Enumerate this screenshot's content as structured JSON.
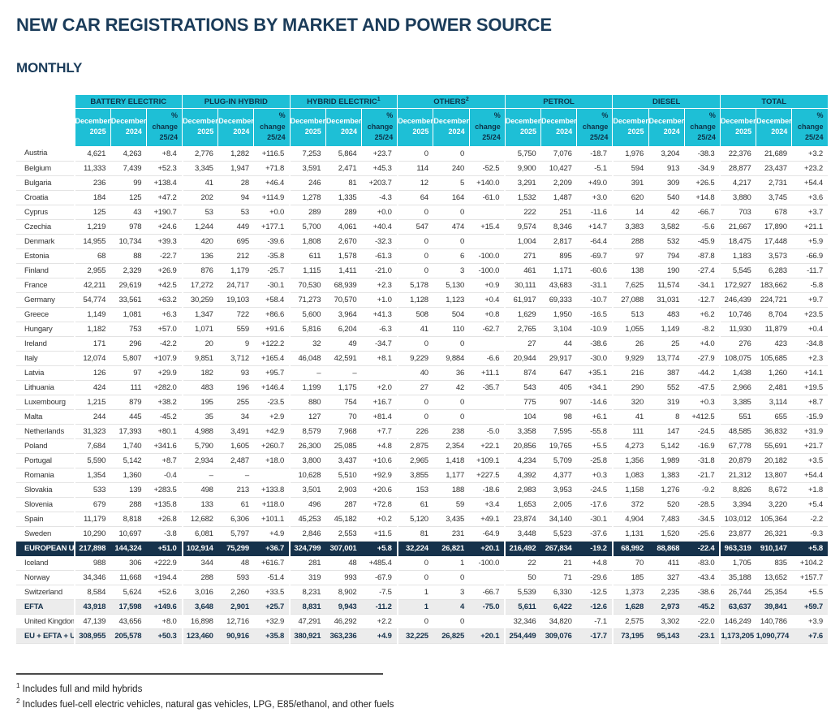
{
  "title": "NEW CAR REGISTRATIONS BY MARKET AND POWER SOURCE",
  "subtitle": "MONTHLY",
  "colors": {
    "header_cyan": "#1ebfd6",
    "navy": "#16324b",
    "title_navy": "#1b3c5a",
    "subtotal_gray": "#ececec"
  },
  "table": {
    "groups": [
      {
        "label": "BATTERY ELECTRIC",
        "sup": ""
      },
      {
        "label": "PLUG-IN HYBRID",
        "sup": ""
      },
      {
        "label": "HYBRID ELECTRIC",
        "sup": "1"
      },
      {
        "label": "OTHERS",
        "sup": "2"
      },
      {
        "label": "PETROL",
        "sup": ""
      },
      {
        "label": "DIESEL",
        "sup": ""
      },
      {
        "label": "TOTAL",
        "sup": ""
      }
    ],
    "subcols": [
      {
        "line1": "December",
        "line2": "2025"
      },
      {
        "line1": "December",
        "line2": "2024"
      },
      {
        "line1": "% change",
        "line2": "25/24"
      }
    ],
    "rows": [
      {
        "name": "Austria",
        "style": "normal",
        "cells": [
          "4,621",
          "4,263",
          "+8.4",
          "2,776",
          "1,282",
          "+116.5",
          "7,253",
          "5,864",
          "+23.7",
          "0",
          "0",
          "",
          "5,750",
          "7,076",
          "-18.7",
          "1,976",
          "3,204",
          "-38.3",
          "22,376",
          "21,689",
          "+3.2"
        ]
      },
      {
        "name": "Belgium",
        "style": "normal",
        "cells": [
          "11,333",
          "7,439",
          "+52.3",
          "3,345",
          "1,947",
          "+71.8",
          "3,591",
          "2,471",
          "+45.3",
          "114",
          "240",
          "-52.5",
          "9,900",
          "10,427",
          "-5.1",
          "594",
          "913",
          "-34.9",
          "28,877",
          "23,437",
          "+23.2"
        ]
      },
      {
        "name": "Bulgaria",
        "style": "normal",
        "cells": [
          "236",
          "99",
          "+138.4",
          "41",
          "28",
          "+46.4",
          "246",
          "81",
          "+203.7",
          "12",
          "5",
          "+140.0",
          "3,291",
          "2,209",
          "+49.0",
          "391",
          "309",
          "+26.5",
          "4,217",
          "2,731",
          "+54.4"
        ]
      },
      {
        "name": "Croatia",
        "style": "normal",
        "cells": [
          "184",
          "125",
          "+47.2",
          "202",
          "94",
          "+114.9",
          "1,278",
          "1,335",
          "-4.3",
          "64",
          "164",
          "-61.0",
          "1,532",
          "1,487",
          "+3.0",
          "620",
          "540",
          "+14.8",
          "3,880",
          "3,745",
          "+3.6"
        ]
      },
      {
        "name": "Cyprus",
        "style": "normal",
        "cells": [
          "125",
          "43",
          "+190.7",
          "53",
          "53",
          "+0.0",
          "289",
          "289",
          "+0.0",
          "0",
          "0",
          "",
          "222",
          "251",
          "-11.6",
          "14",
          "42",
          "-66.7",
          "703",
          "678",
          "+3.7"
        ]
      },
      {
        "name": "Czechia",
        "style": "normal",
        "cells": [
          "1,219",
          "978",
          "+24.6",
          "1,244",
          "449",
          "+177.1",
          "5,700",
          "4,061",
          "+40.4",
          "547",
          "474",
          "+15.4",
          "9,574",
          "8,346",
          "+14.7",
          "3,383",
          "3,582",
          "-5.6",
          "21,667",
          "17,890",
          "+21.1"
        ]
      },
      {
        "name": "Denmark",
        "style": "normal",
        "cells": [
          "14,955",
          "10,734",
          "+39.3",
          "420",
          "695",
          "-39.6",
          "1,808",
          "2,670",
          "-32.3",
          "0",
          "0",
          "",
          "1,004",
          "2,817",
          "-64.4",
          "288",
          "532",
          "-45.9",
          "18,475",
          "17,448",
          "+5.9"
        ]
      },
      {
        "name": "Estonia",
        "style": "normal",
        "cells": [
          "68",
          "88",
          "-22.7",
          "136",
          "212",
          "-35.8",
          "611",
          "1,578",
          "-61.3",
          "0",
          "6",
          "-100.0",
          "271",
          "895",
          "-69.7",
          "97",
          "794",
          "-87.8",
          "1,183",
          "3,573",
          "-66.9"
        ]
      },
      {
        "name": "Finland",
        "style": "normal",
        "cells": [
          "2,955",
          "2,329",
          "+26.9",
          "876",
          "1,179",
          "-25.7",
          "1,115",
          "1,411",
          "-21.0",
          "0",
          "3",
          "-100.0",
          "461",
          "1,171",
          "-60.6",
          "138",
          "190",
          "-27.4",
          "5,545",
          "6,283",
          "-11.7"
        ]
      },
      {
        "name": "France",
        "style": "normal",
        "cells": [
          "42,211",
          "29,619",
          "+42.5",
          "17,272",
          "24,717",
          "-30.1",
          "70,530",
          "68,939",
          "+2.3",
          "5,178",
          "5,130",
          "+0.9",
          "30,111",
          "43,683",
          "-31.1",
          "7,625",
          "11,574",
          "-34.1",
          "172,927",
          "183,662",
          "-5.8"
        ]
      },
      {
        "name": "Germany",
        "style": "normal",
        "cells": [
          "54,774",
          "33,561",
          "+63.2",
          "30,259",
          "19,103",
          "+58.4",
          "71,273",
          "70,570",
          "+1.0",
          "1,128",
          "1,123",
          "+0.4",
          "61,917",
          "69,333",
          "-10.7",
          "27,088",
          "31,031",
          "-12.7",
          "246,439",
          "224,721",
          "+9.7"
        ]
      },
      {
        "name": "Greece",
        "style": "normal",
        "cells": [
          "1,149",
          "1,081",
          "+6.3",
          "1,347",
          "722",
          "+86.6",
          "5,600",
          "3,964",
          "+41.3",
          "508",
          "504",
          "+0.8",
          "1,629",
          "1,950",
          "-16.5",
          "513",
          "483",
          "+6.2",
          "10,746",
          "8,704",
          "+23.5"
        ]
      },
      {
        "name": "Hungary",
        "style": "normal",
        "cells": [
          "1,182",
          "753",
          "+57.0",
          "1,071",
          "559",
          "+91.6",
          "5,816",
          "6,204",
          "-6.3",
          "41",
          "110",
          "-62.7",
          "2,765",
          "3,104",
          "-10.9",
          "1,055",
          "1,149",
          "-8.2",
          "11,930",
          "11,879",
          "+0.4"
        ]
      },
      {
        "name": "Ireland",
        "style": "normal",
        "cells": [
          "171",
          "296",
          "-42.2",
          "20",
          "9",
          "+122.2",
          "32",
          "49",
          "-34.7",
          "0",
          "0",
          "",
          "27",
          "44",
          "-38.6",
          "26",
          "25",
          "+4.0",
          "276",
          "423",
          "-34.8"
        ]
      },
      {
        "name": "Italy",
        "style": "normal",
        "cells": [
          "12,074",
          "5,807",
          "+107.9",
          "9,851",
          "3,712",
          "+165.4",
          "46,048",
          "42,591",
          "+8.1",
          "9,229",
          "9,884",
          "-6.6",
          "20,944",
          "29,917",
          "-30.0",
          "9,929",
          "13,774",
          "-27.9",
          "108,075",
          "105,685",
          "+2.3"
        ]
      },
      {
        "name": "Latvia",
        "style": "normal",
        "cells": [
          "126",
          "97",
          "+29.9",
          "182",
          "93",
          "+95.7",
          "–",
          "–",
          "",
          "40",
          "36",
          "+11.1",
          "874",
          "647",
          "+35.1",
          "216",
          "387",
          "-44.2",
          "1,438",
          "1,260",
          "+14.1"
        ]
      },
      {
        "name": "Lithuania",
        "style": "normal",
        "cells": [
          "424",
          "111",
          "+282.0",
          "483",
          "196",
          "+146.4",
          "1,199",
          "1,175",
          "+2.0",
          "27",
          "42",
          "-35.7",
          "543",
          "405",
          "+34.1",
          "290",
          "552",
          "-47.5",
          "2,966",
          "2,481",
          "+19.5"
        ]
      },
      {
        "name": "Luxembourg",
        "style": "normal",
        "cells": [
          "1,215",
          "879",
          "+38.2",
          "195",
          "255",
          "-23.5",
          "880",
          "754",
          "+16.7",
          "0",
          "0",
          "",
          "775",
          "907",
          "-14.6",
          "320",
          "319",
          "+0.3",
          "3,385",
          "3,114",
          "+8.7"
        ]
      },
      {
        "name": "Malta",
        "style": "normal",
        "cells": [
          "244",
          "445",
          "-45.2",
          "35",
          "34",
          "+2.9",
          "127",
          "70",
          "+81.4",
          "0",
          "0",
          "",
          "104",
          "98",
          "+6.1",
          "41",
          "8",
          "+412.5",
          "551",
          "655",
          "-15.9"
        ]
      },
      {
        "name": "Netherlands",
        "style": "normal",
        "cells": [
          "31,323",
          "17,393",
          "+80.1",
          "4,988",
          "3,491",
          "+42.9",
          "8,579",
          "7,968",
          "+7.7",
          "226",
          "238",
          "-5.0",
          "3,358",
          "7,595",
          "-55.8",
          "111",
          "147",
          "-24.5",
          "48,585",
          "36,832",
          "+31.9"
        ]
      },
      {
        "name": "Poland",
        "style": "normal",
        "cells": [
          "7,684",
          "1,740",
          "+341.6",
          "5,790",
          "1,605",
          "+260.7",
          "26,300",
          "25,085",
          "+4.8",
          "2,875",
          "2,354",
          "+22.1",
          "20,856",
          "19,765",
          "+5.5",
          "4,273",
          "5,142",
          "-16.9",
          "67,778",
          "55,691",
          "+21.7"
        ]
      },
      {
        "name": "Portugal",
        "style": "normal",
        "cells": [
          "5,590",
          "5,142",
          "+8.7",
          "2,934",
          "2,487",
          "+18.0",
          "3,800",
          "3,437",
          "+10.6",
          "2,965",
          "1,418",
          "+109.1",
          "4,234",
          "5,709",
          "-25.8",
          "1,356",
          "1,989",
          "-31.8",
          "20,879",
          "20,182",
          "+3.5"
        ]
      },
      {
        "name": "Romania",
        "style": "normal",
        "cells": [
          "1,354",
          "1,360",
          "-0.4",
          "–",
          "–",
          "",
          "10,628",
          "5,510",
          "+92.9",
          "3,855",
          "1,177",
          "+227.5",
          "4,392",
          "4,377",
          "+0.3",
          "1,083",
          "1,383",
          "-21.7",
          "21,312",
          "13,807",
          "+54.4"
        ]
      },
      {
        "name": "Slovakia",
        "style": "normal",
        "cells": [
          "533",
          "139",
          "+283.5",
          "498",
          "213",
          "+133.8",
          "3,501",
          "2,903",
          "+20.6",
          "153",
          "188",
          "-18.6",
          "2,983",
          "3,953",
          "-24.5",
          "1,158",
          "1,276",
          "-9.2",
          "8,826",
          "8,672",
          "+1.8"
        ]
      },
      {
        "name": "Slovenia",
        "style": "normal",
        "cells": [
          "679",
          "288",
          "+135.8",
          "133",
          "61",
          "+118.0",
          "496",
          "287",
          "+72.8",
          "61",
          "59",
          "+3.4",
          "1,653",
          "2,005",
          "-17.6",
          "372",
          "520",
          "-28.5",
          "3,394",
          "3,220",
          "+5.4"
        ]
      },
      {
        "name": "Spain",
        "style": "normal",
        "cells": [
          "11,179",
          "8,818",
          "+26.8",
          "12,682",
          "6,306",
          "+101.1",
          "45,253",
          "45,182",
          "+0.2",
          "5,120",
          "3,435",
          "+49.1",
          "23,874",
          "34,140",
          "-30.1",
          "4,904",
          "7,483",
          "-34.5",
          "103,012",
          "105,364",
          "-2.2"
        ]
      },
      {
        "name": "Sweden",
        "style": "normal",
        "cells": [
          "10,290",
          "10,697",
          "-3.8",
          "6,081",
          "5,797",
          "+4.9",
          "2,846",
          "2,553",
          "+11.5",
          "81",
          "231",
          "-64.9",
          "3,448",
          "5,523",
          "-37.6",
          "1,131",
          "1,520",
          "-25.6",
          "23,877",
          "26,321",
          "-9.3"
        ]
      },
      {
        "name": "EUROPEAN UNION",
        "style": "eu",
        "cells": [
          "217,898",
          "144,324",
          "+51.0",
          "102,914",
          "75,299",
          "+36.7",
          "324,799",
          "307,001",
          "+5.8",
          "32,224",
          "26,821",
          "+20.1",
          "216,492",
          "267,834",
          "-19.2",
          "68,992",
          "88,868",
          "-22.4",
          "963,319",
          "910,147",
          "+5.8"
        ]
      },
      {
        "name": "Iceland",
        "style": "normal",
        "cells": [
          "988",
          "306",
          "+222.9",
          "344",
          "48",
          "+616.7",
          "281",
          "48",
          "+485.4",
          "0",
          "1",
          "-100.0",
          "22",
          "21",
          "+4.8",
          "70",
          "411",
          "-83.0",
          "1,705",
          "835",
          "+104.2"
        ]
      },
      {
        "name": "Norway",
        "style": "normal",
        "cells": [
          "34,346",
          "11,668",
          "+194.4",
          "288",
          "593",
          "-51.4",
          "319",
          "993",
          "-67.9",
          "0",
          "0",
          "",
          "50",
          "71",
          "-29.6",
          "185",
          "327",
          "-43.4",
          "35,188",
          "13,652",
          "+157.7"
        ]
      },
      {
        "name": "Switzerland",
        "style": "normal",
        "cells": [
          "8,584",
          "5,624",
          "+52.6",
          "3,016",
          "2,260",
          "+33.5",
          "8,231",
          "8,902",
          "-7.5",
          "1",
          "3",
          "-66.7",
          "5,539",
          "6,330",
          "-12.5",
          "1,373",
          "2,235",
          "-38.6",
          "26,744",
          "25,354",
          "+5.5"
        ]
      },
      {
        "name": "EFTA",
        "style": "subtotal",
        "cells": [
          "43,918",
          "17,598",
          "+149.6",
          "3,648",
          "2,901",
          "+25.7",
          "8,831",
          "9,943",
          "-11.2",
          "1",
          "4",
          "-75.0",
          "5,611",
          "6,422",
          "-12.6",
          "1,628",
          "2,973",
          "-45.2",
          "63,637",
          "39,841",
          "+59.7"
        ]
      },
      {
        "name": "United Kingdom",
        "style": "normal",
        "cells": [
          "47,139",
          "43,656",
          "+8.0",
          "16,898",
          "12,716",
          "+32.9",
          "47,291",
          "46,292",
          "+2.2",
          "0",
          "0",
          "",
          "32,346",
          "34,820",
          "-7.1",
          "2,575",
          "3,302",
          "-22.0",
          "146,249",
          "140,786",
          "+3.9"
        ]
      },
      {
        "name": "EU + EFTA + UK",
        "style": "subtotal",
        "cells": [
          "308,955",
          "205,578",
          "+50.3",
          "123,460",
          "90,916",
          "+35.8",
          "380,921",
          "363,236",
          "+4.9",
          "32,225",
          "26,825",
          "+20.1",
          "254,449",
          "309,076",
          "-17.7",
          "73,195",
          "95,143",
          "-23.1",
          "1,173,205",
          "1,090,774",
          "+7.6"
        ]
      }
    ]
  },
  "footnotes": [
    {
      "sup": "1",
      "text": "Includes full and mild hybrids"
    },
    {
      "sup": "2",
      "text": "Includes fuel-cell electric vehicles, natural gas vehicles, LPG, E85/ethanol, and other fuels"
    }
  ]
}
